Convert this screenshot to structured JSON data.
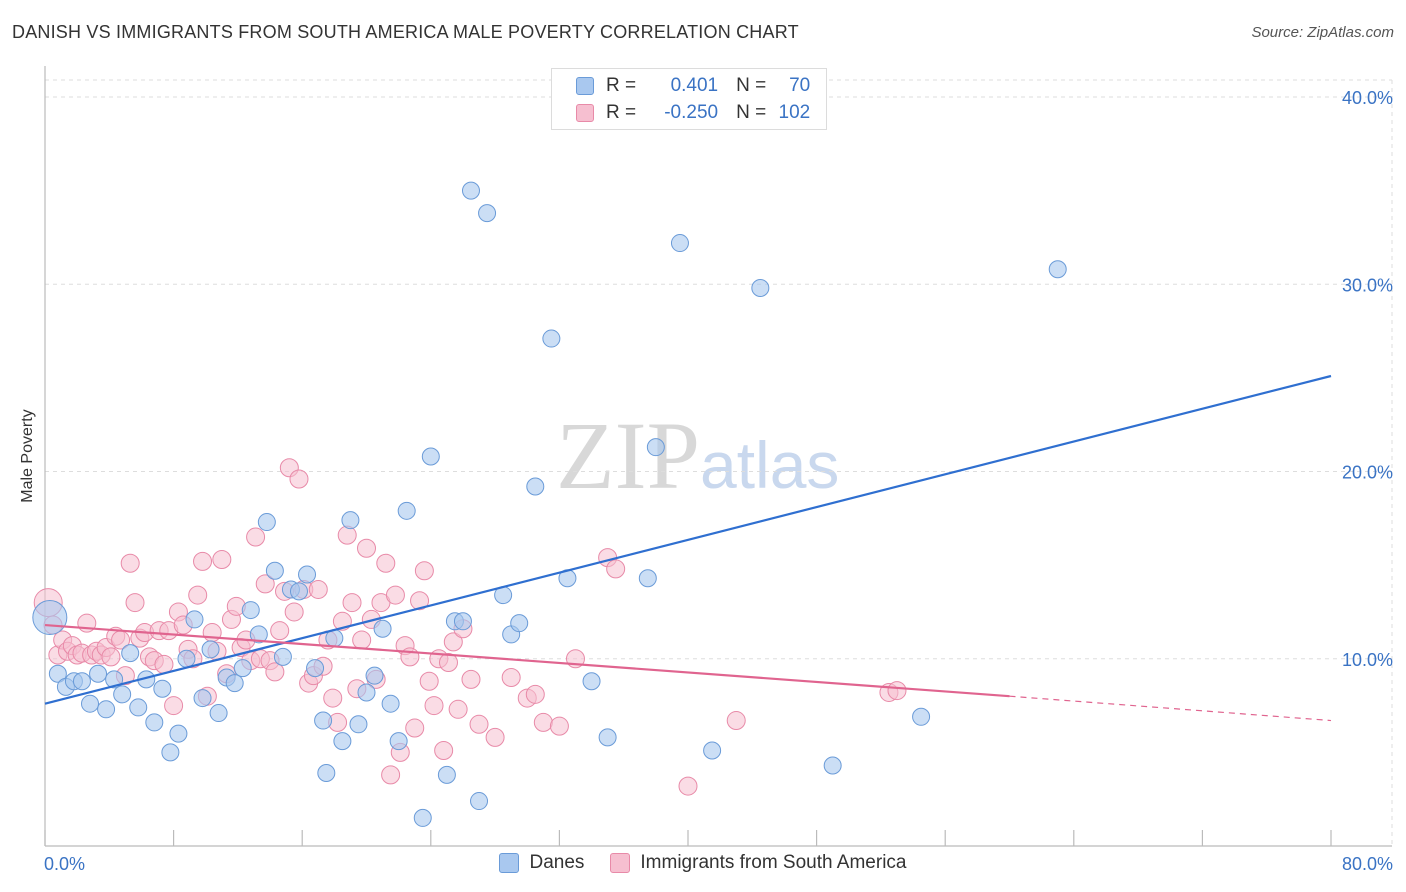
{
  "header": {
    "title": "DANISH VS IMMIGRANTS FROM SOUTH AMERICA MALE POVERTY CORRELATION CHART",
    "source": "Source: ZipAtlas.com"
  },
  "watermark": {
    "zip": "ZIP",
    "atlas": "atlas"
  },
  "legend_box": {
    "rows": [
      {
        "r_label": "R =",
        "r_value": "0.401",
        "n_label": "N =",
        "n_value": "70"
      },
      {
        "r_label": "R =",
        "r_value": "-0.250",
        "n_label": "N =",
        "n_value": "102"
      }
    ]
  },
  "colors": {
    "danes_fill": "#a9c8ef",
    "danes_stroke": "#6a9bd8",
    "danes_line": "#2f6fd0",
    "imm_fill": "#f6bfd0",
    "imm_stroke": "#e88aa8",
    "imm_line": "#e0648f",
    "axis_tick_label": "#3a73c4",
    "grid": "#dddddd"
  },
  "chart_data": {
    "type": "scatter",
    "title": "DANISH VS IMMIGRANTS FROM SOUTH AMERICA MALE POVERTY CORRELATION CHART",
    "xlabel": "",
    "ylabel": "Male Poverty",
    "xlim": [
      0,
      80
    ],
    "ylim": [
      0,
      40
    ],
    "x_tick_labels": [
      "0.0%",
      "80.0%"
    ],
    "y_ticks": [
      10,
      20,
      30,
      40
    ],
    "y_tick_labels": [
      "10.0%",
      "20.0%",
      "30.0%",
      "40.0%"
    ],
    "grid": "horizontal dashed",
    "legend_position": "bottom",
    "series": [
      {
        "name": "Danes",
        "r": 0.401,
        "n": 70,
        "trend": {
          "x0": 0,
          "y0": 7.6,
          "x1": 80,
          "y1": 25.1
        },
        "points": [
          [
            0.3,
            12.2
          ],
          [
            0.8,
            9.2
          ],
          [
            1.3,
            8.5
          ],
          [
            1.8,
            8.8
          ],
          [
            2.3,
            8.8
          ],
          [
            2.8,
            7.6
          ],
          [
            3.3,
            9.2
          ],
          [
            3.8,
            7.3
          ],
          [
            4.3,
            8.9
          ],
          [
            4.8,
            8.1
          ],
          [
            5.3,
            10.3
          ],
          [
            5.8,
            7.4
          ],
          [
            6.3,
            8.9
          ],
          [
            6.8,
            6.6
          ],
          [
            7.3,
            8.4
          ],
          [
            7.8,
            5.0
          ],
          [
            8.3,
            6.0
          ],
          [
            8.8,
            10.0
          ],
          [
            9.3,
            12.1
          ],
          [
            9.8,
            7.9
          ],
          [
            10.3,
            10.5
          ],
          [
            10.8,
            7.1
          ],
          [
            11.3,
            9.0
          ],
          [
            11.8,
            8.7
          ],
          [
            12.3,
            9.5
          ],
          [
            12.8,
            12.6
          ],
          [
            13.3,
            11.3
          ],
          [
            13.8,
            17.3
          ],
          [
            14.3,
            14.7
          ],
          [
            14.8,
            10.1
          ],
          [
            15.3,
            13.7
          ],
          [
            15.8,
            13.6
          ],
          [
            16.3,
            14.5
          ],
          [
            16.8,
            9.5
          ],
          [
            17.3,
            6.7
          ],
          [
            17.5,
            3.9
          ],
          [
            18.0,
            11.1
          ],
          [
            18.5,
            5.6
          ],
          [
            19.0,
            17.4
          ],
          [
            19.5,
            6.5
          ],
          [
            20.0,
            8.2
          ],
          [
            20.5,
            9.1
          ],
          [
            21.0,
            11.6
          ],
          [
            21.5,
            7.6
          ],
          [
            22.0,
            5.6
          ],
          [
            22.5,
            17.9
          ],
          [
            23.5,
            1.5
          ],
          [
            24.0,
            20.8
          ],
          [
            25.0,
            3.8
          ],
          [
            25.5,
            12.0
          ],
          [
            26.0,
            12.0
          ],
          [
            26.5,
            35.0
          ],
          [
            27.0,
            2.4
          ],
          [
            27.5,
            33.8
          ],
          [
            28.5,
            13.4
          ],
          [
            29.0,
            11.3
          ],
          [
            29.5,
            11.9
          ],
          [
            30.5,
            19.2
          ],
          [
            31.5,
            27.1
          ],
          [
            32.5,
            14.3
          ],
          [
            34.0,
            8.8
          ],
          [
            35.0,
            5.8
          ],
          [
            37.5,
            14.3
          ],
          [
            38.0,
            21.3
          ],
          [
            39.5,
            32.2
          ],
          [
            41.5,
            5.1
          ],
          [
            44.5,
            29.8
          ],
          [
            49.0,
            4.3
          ],
          [
            54.5,
            6.9
          ],
          [
            63.0,
            30.8
          ]
        ]
      },
      {
        "name": "Immigrants from South America",
        "r": -0.25,
        "n": 102,
        "trend": {
          "x0": 0,
          "y0": 11.8,
          "x1": 60,
          "y1": 8.0,
          "dashed_to_x": 80,
          "dashed_to_y": 6.7
        },
        "points": [
          [
            0.2,
            13.0
          ],
          [
            0.5,
            11.8
          ],
          [
            0.8,
            10.2
          ],
          [
            1.1,
            11.0
          ],
          [
            1.4,
            10.4
          ],
          [
            1.7,
            10.7
          ],
          [
            2.0,
            10.2
          ],
          [
            2.3,
            10.3
          ],
          [
            2.6,
            11.9
          ],
          [
            2.9,
            10.2
          ],
          [
            3.2,
            10.4
          ],
          [
            3.5,
            10.2
          ],
          [
            3.8,
            10.6
          ],
          [
            4.1,
            10.1
          ],
          [
            4.4,
            11.2
          ],
          [
            4.7,
            11.0
          ],
          [
            5.0,
            9.1
          ],
          [
            5.3,
            15.1
          ],
          [
            5.6,
            13.0
          ],
          [
            5.9,
            11.1
          ],
          [
            6.2,
            11.4
          ],
          [
            6.5,
            10.1
          ],
          [
            6.8,
            9.9
          ],
          [
            7.1,
            11.5
          ],
          [
            7.4,
            9.7
          ],
          [
            7.7,
            11.5
          ],
          [
            8.0,
            7.5
          ],
          [
            8.3,
            12.5
          ],
          [
            8.6,
            11.8
          ],
          [
            8.9,
            10.5
          ],
          [
            9.2,
            10.0
          ],
          [
            9.5,
            13.4
          ],
          [
            9.8,
            15.2
          ],
          [
            10.1,
            8.0
          ],
          [
            10.4,
            11.4
          ],
          [
            10.7,
            10.4
          ],
          [
            11.0,
            15.3
          ],
          [
            11.3,
            9.2
          ],
          [
            11.6,
            12.1
          ],
          [
            11.9,
            12.8
          ],
          [
            12.2,
            10.6
          ],
          [
            12.5,
            11.0
          ],
          [
            12.8,
            9.9
          ],
          [
            13.1,
            16.5
          ],
          [
            13.4,
            10.0
          ],
          [
            13.7,
            14.0
          ],
          [
            14.0,
            9.9
          ],
          [
            14.3,
            9.3
          ],
          [
            14.6,
            11.5
          ],
          [
            14.9,
            13.6
          ],
          [
            15.2,
            20.2
          ],
          [
            15.5,
            12.5
          ],
          [
            15.8,
            19.6
          ],
          [
            16.1,
            13.7
          ],
          [
            16.4,
            8.7
          ],
          [
            16.7,
            9.1
          ],
          [
            17.0,
            13.7
          ],
          [
            17.3,
            9.6
          ],
          [
            17.6,
            11.0
          ],
          [
            17.9,
            7.9
          ],
          [
            18.2,
            6.6
          ],
          [
            18.5,
            12.0
          ],
          [
            18.8,
            16.6
          ],
          [
            19.1,
            13.0
          ],
          [
            19.4,
            8.4
          ],
          [
            19.7,
            11.0
          ],
          [
            20.0,
            15.9
          ],
          [
            20.3,
            12.1
          ],
          [
            20.6,
            8.9
          ],
          [
            20.9,
            13.0
          ],
          [
            21.2,
            15.1
          ],
          [
            21.5,
            3.8
          ],
          [
            21.8,
            13.4
          ],
          [
            22.1,
            5.0
          ],
          [
            22.4,
            10.7
          ],
          [
            22.7,
            10.1
          ],
          [
            23.0,
            6.3
          ],
          [
            23.3,
            13.1
          ],
          [
            23.6,
            14.7
          ],
          [
            23.9,
            8.8
          ],
          [
            24.2,
            7.5
          ],
          [
            24.5,
            10.0
          ],
          [
            24.8,
            5.1
          ],
          [
            25.1,
            9.8
          ],
          [
            25.4,
            10.9
          ],
          [
            25.7,
            7.3
          ],
          [
            26.0,
            11.6
          ],
          [
            26.5,
            8.9
          ],
          [
            27.0,
            6.5
          ],
          [
            28.0,
            5.8
          ],
          [
            29.0,
            9.0
          ],
          [
            30.0,
            7.9
          ],
          [
            30.5,
            8.1
          ],
          [
            31.0,
            6.6
          ],
          [
            32.0,
            6.4
          ],
          [
            33.0,
            10.0
          ],
          [
            35.0,
            15.4
          ],
          [
            35.5,
            14.8
          ],
          [
            40.0,
            3.2
          ],
          [
            43.0,
            6.7
          ],
          [
            52.5,
            8.2
          ],
          [
            53.0,
            8.3
          ]
        ]
      }
    ]
  },
  "bottom_legend": {
    "items": [
      {
        "label": "Danes"
      },
      {
        "label": "Immigrants from South America"
      }
    ]
  }
}
